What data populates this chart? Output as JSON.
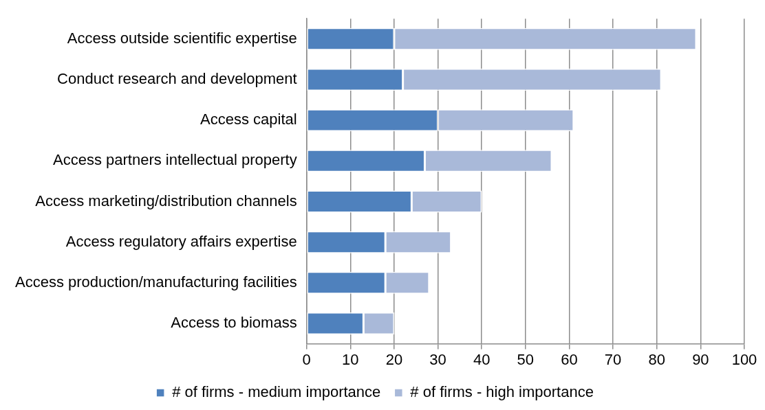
{
  "chart_data": {
    "type": "bar",
    "orientation": "horizontal",
    "stacked": true,
    "categories": [
      "Access outside scientific expertise",
      "Conduct research and development",
      "Access capital",
      "Access partners intellectual property",
      "Access marketing/distribution channels",
      "Access regulatory affairs expertise",
      "Access production/manufacturing facilities",
      "Access to biomass"
    ],
    "series": [
      {
        "name": "# of firms - medium importance",
        "color": "#4f81bd",
        "values": [
          20,
          22,
          30,
          27,
          24,
          18,
          18,
          13
        ]
      },
      {
        "name": "# of firms - high importance",
        "color": "#a9b9d9",
        "values": [
          69,
          59,
          31,
          29,
          16,
          15,
          10,
          7
        ]
      }
    ],
    "xlim": [
      0,
      100
    ],
    "xticks": [
      0,
      10,
      20,
      30,
      40,
      50,
      60,
      70,
      80,
      90,
      100
    ],
    "grid": "x",
    "legend": "bottom"
  }
}
